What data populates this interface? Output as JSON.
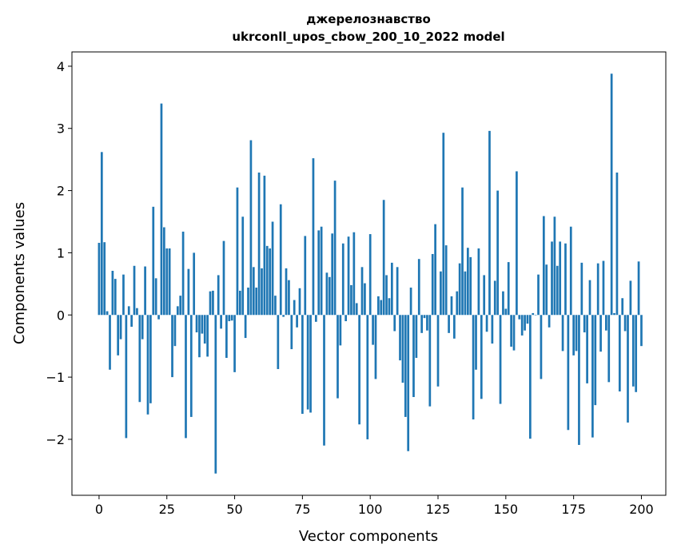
{
  "chart_data": {
    "type": "bar",
    "title_line1": "джерелознавство",
    "title_line2": "ukrconll_upos_cbow_200_10_2022 model",
    "xlabel": "Vector components",
    "ylabel": "Components values",
    "xlim": [
      -10,
      209
    ],
    "ylim": [
      -2.9,
      4.23
    ],
    "xticks": [
      0,
      25,
      50,
      75,
      100,
      125,
      150,
      175,
      200
    ],
    "yticks": [
      -2,
      -1,
      0,
      1,
      2,
      3,
      4
    ],
    "ytick_labels": [
      "−2",
      "−1",
      "0",
      "1",
      "2",
      "3",
      "4"
    ],
    "grid": false,
    "bar_color": "#1f77b4",
    "values": [
      1.16,
      2.62,
      1.17,
      0.06,
      -0.88,
      0.71,
      0.58,
      -0.65,
      -0.39,
      0.65,
      -1.98,
      0.14,
      -0.19,
      0.79,
      0.11,
      -1.4,
      -0.39,
      0.78,
      -1.6,
      -1.42,
      1.74,
      0.59,
      -0.07,
      3.4,
      1.41,
      1.07,
      1.07,
      -1.0,
      -0.5,
      0.14,
      0.31,
      1.34,
      -1.98,
      0.74,
      -1.64,
      1.0,
      -0.28,
      -0.68,
      -0.3,
      -0.46,
      -0.67,
      0.38,
      0.39,
      -2.55,
      0.64,
      -0.22,
      1.19,
      -0.69,
      -0.1,
      -0.09,
      -0.92,
      2.05,
      0.39,
      1.58,
      -0.37,
      0.44,
      2.81,
      0.77,
      0.44,
      2.29,
      0.75,
      2.24,
      1.11,
      1.07,
      1.5,
      0.31,
      -0.87,
      1.78,
      -0.03,
      0.75,
      0.56,
      -0.55,
      0.24,
      -0.2,
      0.43,
      -1.59,
      1.27,
      -1.52,
      -1.57,
      2.52,
      -0.11,
      1.36,
      1.42,
      -2.1,
      0.68,
      0.61,
      1.31,
      2.16,
      -1.34,
      -0.49,
      1.15,
      -0.1,
      1.26,
      0.48,
      1.33,
      0.19,
      -1.76,
      0.77,
      0.51,
      -2.0,
      1.3,
      -0.48,
      -1.03,
      0.3,
      0.24,
      1.85,
      0.64,
      0.27,
      0.84,
      -0.26,
      0.77,
      -0.73,
      -1.09,
      -1.64,
      -2.19,
      0.44,
      -1.32,
      -0.69,
      0.9,
      -0.29,
      -0.05,
      -0.25,
      -1.47,
      0.98,
      1.46,
      -1.15,
      0.7,
      2.93,
      1.12,
      -0.29,
      0.3,
      -0.38,
      0.38,
      0.83,
      2.05,
      0.7,
      1.08,
      0.93,
      -1.68,
      -0.88,
      1.07,
      -1.35,
      0.64,
      -0.27,
      2.96,
      -0.46,
      0.55,
      2.0,
      -1.43,
      0.38,
      0.1,
      0.85,
      -0.51,
      -0.57,
      2.31,
      -0.07,
      -0.33,
      -0.25,
      -0.14,
      -1.99,
      0.03,
      0.0,
      0.65,
      -1.03,
      1.59,
      0.81,
      -0.2,
      1.18,
      1.58,
      0.79,
      1.18,
      -0.58,
      1.15,
      -1.85,
      1.42,
      -0.65,
      -0.58,
      -2.09,
      0.84,
      -0.28,
      -1.1,
      0.56,
      -1.97,
      -1.45,
      0.83,
      -0.59,
      0.87,
      -0.25,
      -1.08,
      3.88,
      0.03,
      2.29,
      -1.23,
      0.27,
      -0.26,
      -1.73,
      0.55,
      -1.15,
      -1.24,
      0.86,
      -0.5
    ]
  }
}
